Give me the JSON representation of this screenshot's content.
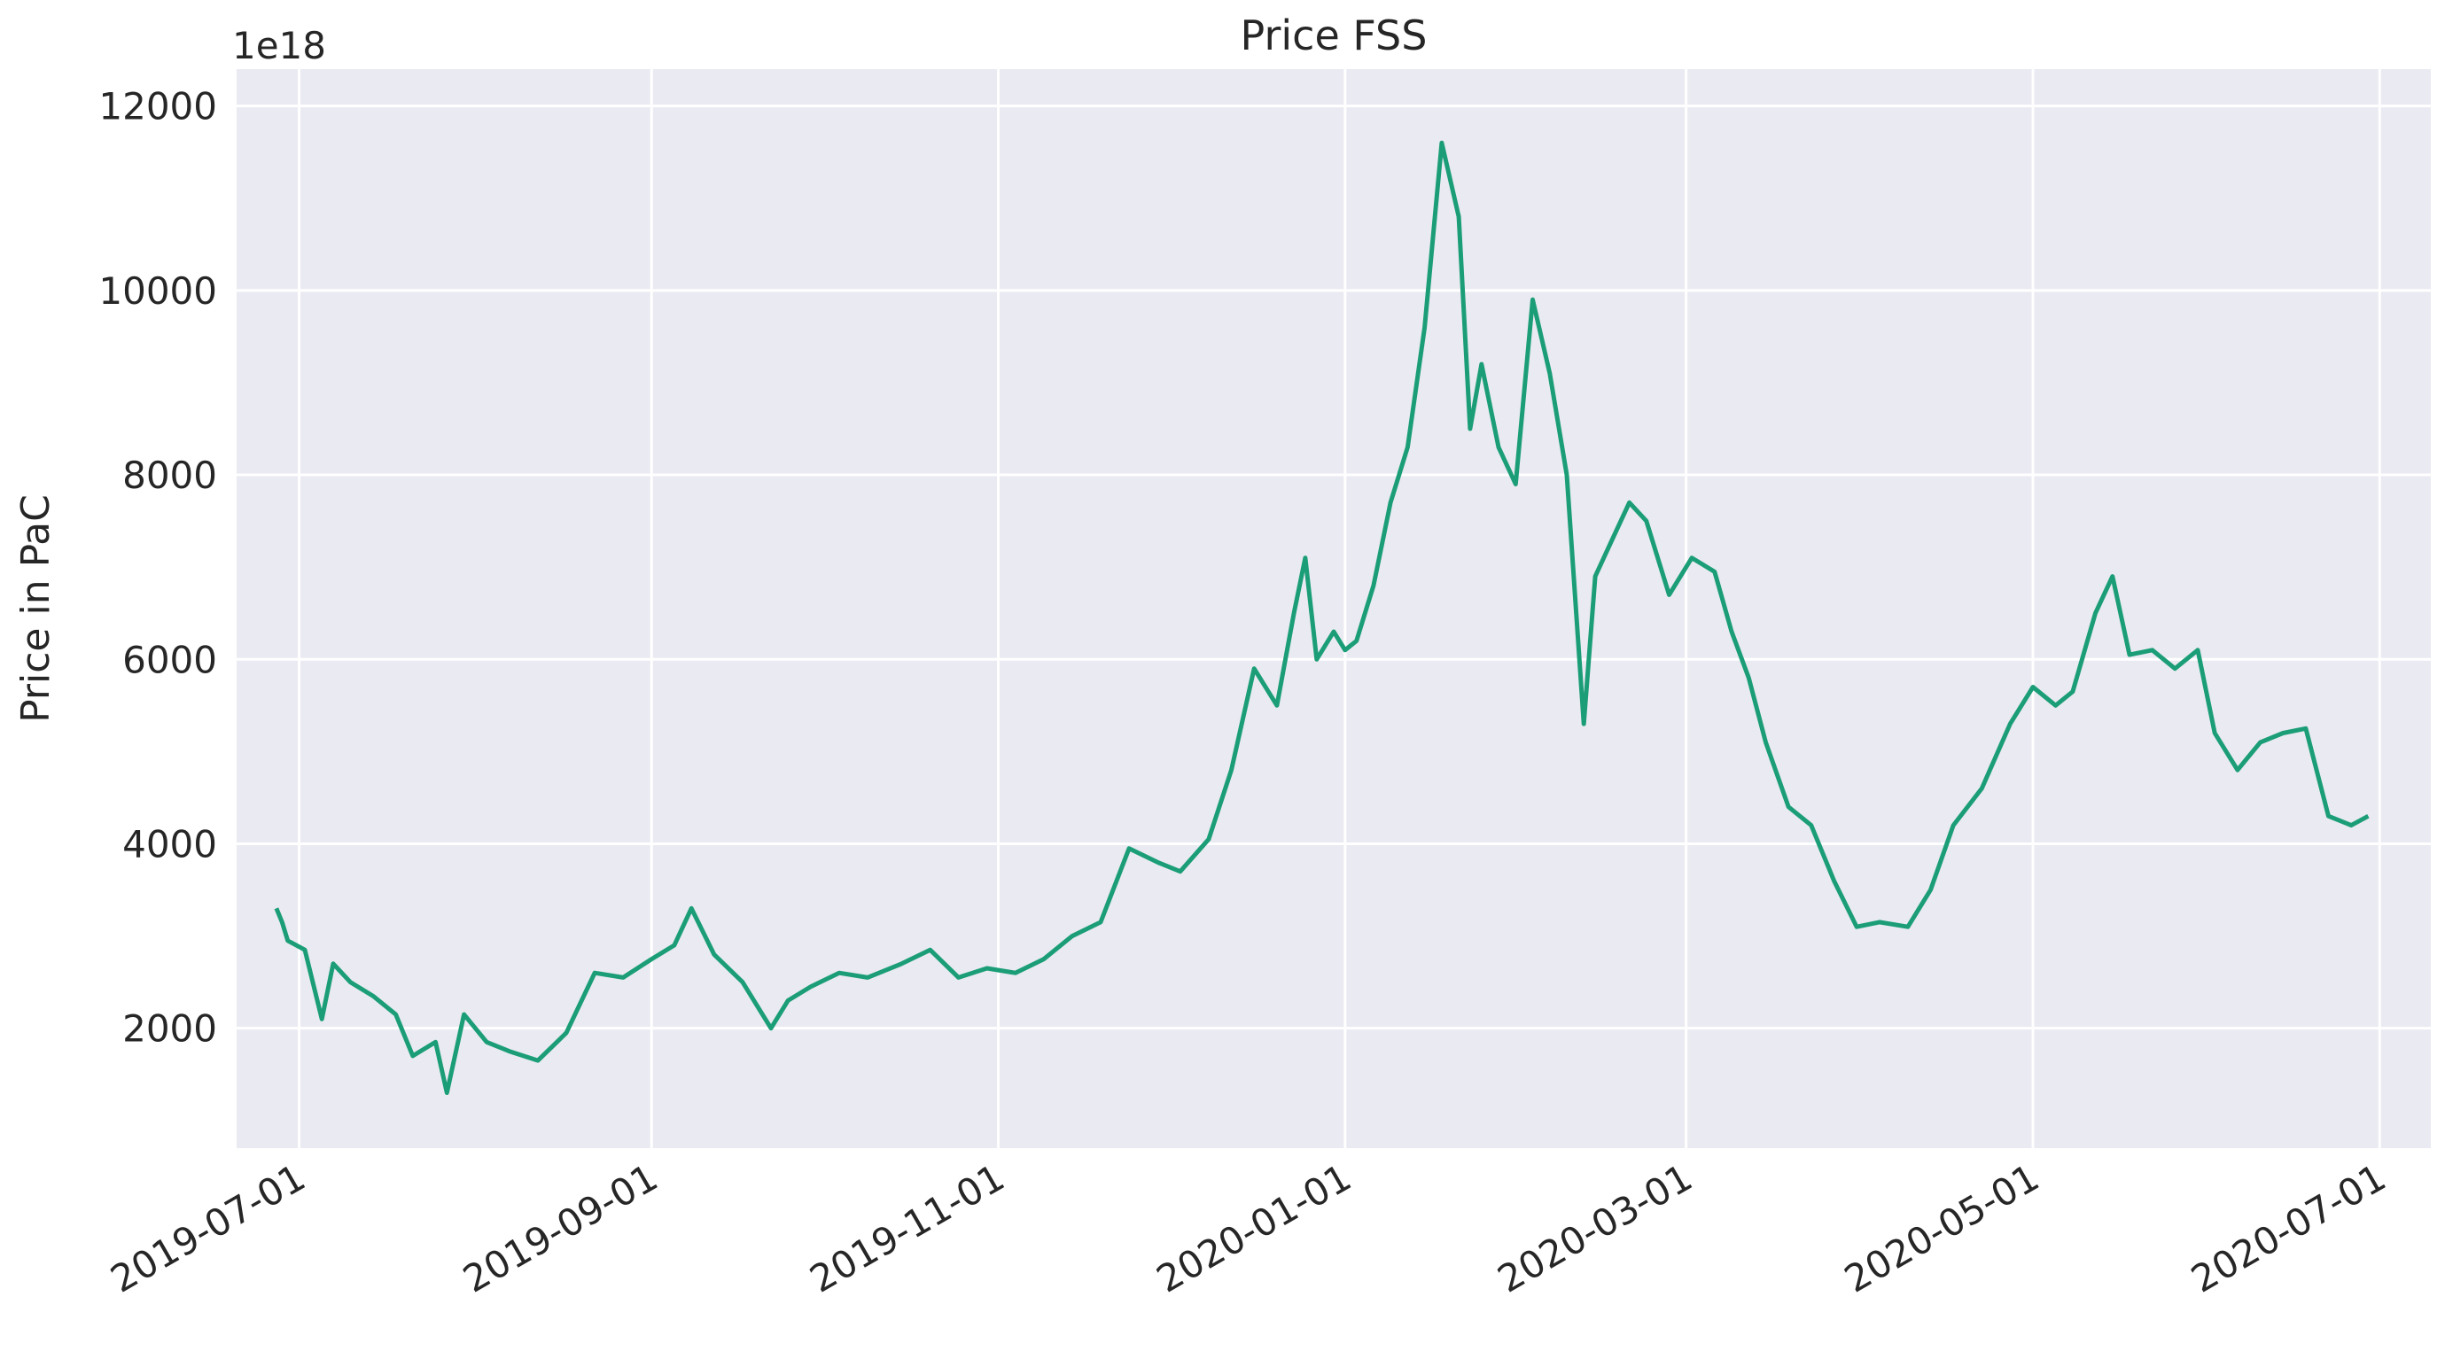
{
  "chart_data": {
    "type": "line",
    "title": "Price FSS",
    "xlabel": "",
    "ylabel": "Price in PaC",
    "y_offset_text": "1e18",
    "xlim": [
      "2019-06-20",
      "2020-07-10"
    ],
    "ylim": [
      700,
      12400
    ],
    "x_ticks": [
      "2019-07-01",
      "2019-09-01",
      "2019-11-01",
      "2020-01-01",
      "2020-03-01",
      "2020-05-01",
      "2020-07-01"
    ],
    "y_ticks": [
      2000,
      4000,
      6000,
      8000,
      10000,
      12000
    ],
    "grid": true,
    "colors": {
      "line": "#1b9e77",
      "background": "#eaeaf2",
      "grid": "#ffffff"
    },
    "series": [
      {
        "x": [
          "2019-06-27",
          "2019-06-28",
          "2019-06-29",
          "2019-07-02",
          "2019-07-05",
          "2019-07-07",
          "2019-07-10",
          "2019-07-14",
          "2019-07-18",
          "2019-07-21",
          "2019-07-25",
          "2019-07-27",
          "2019-07-30",
          "2019-08-03",
          "2019-08-07",
          "2019-08-12",
          "2019-08-17",
          "2019-08-22",
          "2019-08-27",
          "2019-09-01",
          "2019-09-05",
          "2019-09-08",
          "2019-09-12",
          "2019-09-17",
          "2019-09-22",
          "2019-09-25",
          "2019-09-29",
          "2019-10-04",
          "2019-10-09",
          "2019-10-15",
          "2019-10-20",
          "2019-10-25",
          "2019-10-30",
          "2019-11-04",
          "2019-11-09",
          "2019-11-14",
          "2019-11-19",
          "2019-11-24",
          "2019-11-29",
          "2019-12-03",
          "2019-12-08",
          "2019-12-12",
          "2019-12-16",
          "2019-12-20",
          "2019-12-23",
          "2019-12-25",
          "2019-12-27",
          "2019-12-30",
          "2020-01-01",
          "2020-01-03",
          "2020-01-06",
          "2020-01-09",
          "2020-01-12",
          "2020-01-15",
          "2020-01-18",
          "2020-01-21",
          "2020-01-23",
          "2020-01-25",
          "2020-01-28",
          "2020-01-31",
          "2020-02-03",
          "2020-02-06",
          "2020-02-09",
          "2020-02-12",
          "2020-02-14",
          "2020-02-17",
          "2020-02-20",
          "2020-02-23",
          "2020-02-27",
          "2020-03-02",
          "2020-03-06",
          "2020-03-09",
          "2020-03-12",
          "2020-03-15",
          "2020-03-19",
          "2020-03-23",
          "2020-03-27",
          "2020-03-31",
          "2020-04-04",
          "2020-04-09",
          "2020-04-13",
          "2020-04-17",
          "2020-04-22",
          "2020-04-27",
          "2020-05-01",
          "2020-05-05",
          "2020-05-08",
          "2020-05-12",
          "2020-05-15",
          "2020-05-18",
          "2020-05-22",
          "2020-05-26",
          "2020-05-30",
          "2020-06-02",
          "2020-06-06",
          "2020-06-10",
          "2020-06-14",
          "2020-06-18",
          "2020-06-22",
          "2020-06-26",
          "2020-06-29"
        ],
        "y": [
          3300,
          3150,
          2950,
          2850,
          2100,
          2700,
          2500,
          2350,
          2150,
          1700,
          1850,
          1300,
          2150,
          1850,
          1750,
          1650,
          1950,
          2600,
          2550,
          2750,
          2900,
          3300,
          2800,
          2500,
          2000,
          2300,
          2450,
          2600,
          2550,
          2700,
          2850,
          2550,
          2650,
          2600,
          2750,
          3000,
          3150,
          3950,
          3800,
          3700,
          4050,
          4800,
          5900,
          5500,
          6500,
          7100,
          6000,
          6300,
          6100,
          6200,
          6800,
          7700,
          8300,
          9600,
          11600,
          10800,
          8500,
          9200,
          8300,
          7900,
          9900,
          9100,
          8000,
          5300,
          6900,
          7300,
          7700,
          7500,
          6700,
          7100,
          6950,
          6300,
          5800,
          5100,
          4400,
          4200,
          3600,
          3100,
          3150,
          3100,
          3500,
          4200,
          4600,
          5300,
          5700,
          5500,
          5650,
          6500,
          6900,
          6050,
          6100,
          5900,
          6100,
          5200,
          4800,
          5100,
          5200,
          5250,
          4300,
          4200,
          4300
        ]
      }
    ]
  }
}
